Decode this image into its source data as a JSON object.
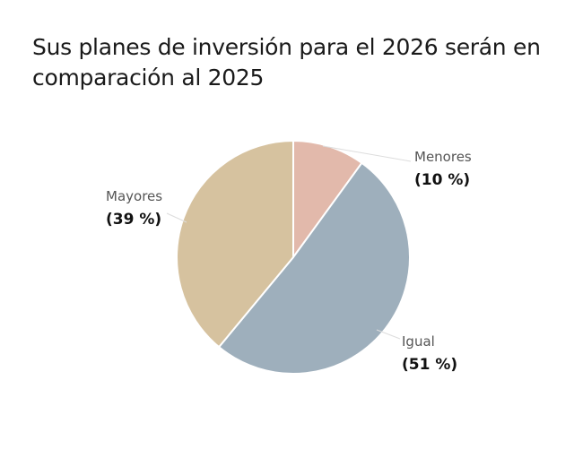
{
  "chart_data": {
    "type": "pie",
    "title": "Sus planes de inversión para el 2026 serán en comparación al 2025",
    "slices": [
      {
        "label": "Menores",
        "value": 10,
        "value_label": "(10 %)",
        "color": "#e2b9ab"
      },
      {
        "label": "Igual",
        "value": 51,
        "value_label": "(51 %)",
        "color": "#9eafbc"
      },
      {
        "label": "Mayores",
        "value": 39,
        "value_label": "(39 %)",
        "color": "#d6c29f"
      }
    ],
    "start_angle": "top",
    "direction": "clockwise"
  }
}
